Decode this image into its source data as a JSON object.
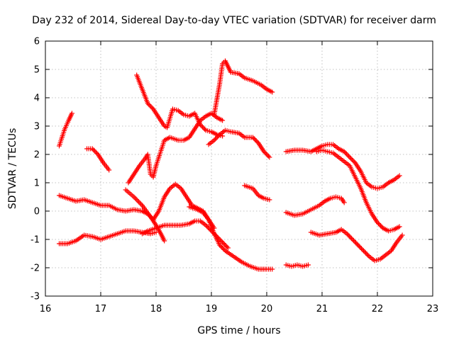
{
  "chart_data": {
    "type": "scatter",
    "title": "Day 232 of 2014, Sidereal Day-to-day VTEC variation (SDTVAR) for receiver darm",
    "xlabel": "GPS time / hours",
    "ylabel": "SDTVAR / TECUs",
    "xlim": [
      16,
      23
    ],
    "ylim": [
      -3,
      6
    ],
    "xticks": [
      "16",
      "17",
      "18",
      "19",
      "20",
      "21",
      "22",
      "23"
    ],
    "yticks": [
      "-3",
      "-2",
      "-1",
      "0",
      "1",
      "2",
      "3",
      "4",
      "5",
      "6"
    ],
    "grid": true,
    "marker": "+",
    "color": "#ff0000",
    "series": [
      {
        "name": "s1",
        "points": [
          [
            16.25,
            2.3
          ],
          [
            16.3,
            2.6
          ],
          [
            16.35,
            2.9
          ],
          [
            16.42,
            3.2
          ],
          [
            16.48,
            3.45
          ]
        ]
      },
      {
        "name": "s2",
        "points": [
          [
            16.75,
            2.2
          ],
          [
            16.85,
            2.2
          ],
          [
            16.95,
            2.0
          ],
          [
            17.05,
            1.7
          ],
          [
            17.15,
            1.45
          ]
        ]
      },
      {
        "name": "s3",
        "points": [
          [
            16.25,
            0.55
          ],
          [
            16.4,
            0.45
          ],
          [
            16.55,
            0.35
          ],
          [
            16.7,
            0.4
          ],
          [
            16.85,
            0.3
          ],
          [
            17.0,
            0.2
          ],
          [
            17.15,
            0.2
          ],
          [
            17.3,
            0.05
          ],
          [
            17.45,
            0.0
          ],
          [
            17.6,
            0.05
          ],
          [
            17.75,
            0.0
          ],
          [
            17.85,
            -0.1
          ],
          [
            17.95,
            -0.3
          ]
        ]
      },
      {
        "name": "s4",
        "points": [
          [
            16.25,
            -1.15
          ],
          [
            16.4,
            -1.15
          ],
          [
            16.55,
            -1.05
          ],
          [
            16.7,
            -0.85
          ],
          [
            16.85,
            -0.9
          ],
          [
            17.0,
            -1.0
          ],
          [
            17.15,
            -0.9
          ],
          [
            17.3,
            -0.8
          ],
          [
            17.45,
            -0.7
          ],
          [
            17.6,
            -0.7
          ],
          [
            17.75,
            -0.75
          ],
          [
            17.9,
            -0.8
          ],
          [
            18.0,
            -0.75
          ]
        ]
      },
      {
        "name": "s5",
        "points": [
          [
            17.65,
            4.8
          ],
          [
            17.75,
            4.3
          ],
          [
            17.85,
            3.8
          ],
          [
            17.95,
            3.6
          ],
          [
            18.05,
            3.3
          ],
          [
            18.15,
            3.0
          ],
          [
            18.2,
            2.95
          ],
          [
            18.3,
            3.6
          ],
          [
            18.4,
            3.55
          ],
          [
            18.5,
            3.4
          ],
          [
            18.6,
            3.35
          ],
          [
            18.7,
            3.45
          ],
          [
            18.8,
            3.05
          ],
          [
            18.9,
            2.85
          ],
          [
            19.0,
            2.8
          ],
          [
            19.1,
            2.7
          ],
          [
            19.2,
            2.65
          ]
        ]
      },
      {
        "name": "s6",
        "points": [
          [
            17.5,
            1.0
          ],
          [
            17.6,
            1.3
          ],
          [
            17.7,
            1.6
          ],
          [
            17.8,
            1.85
          ],
          [
            17.85,
            2.0
          ],
          [
            17.9,
            1.3
          ],
          [
            17.95,
            1.2
          ],
          [
            18.0,
            1.6
          ],
          [
            18.05,
            1.9
          ],
          [
            18.1,
            2.2
          ],
          [
            18.15,
            2.5
          ],
          [
            18.25,
            2.6
          ],
          [
            18.4,
            2.5
          ],
          [
            18.5,
            2.5
          ],
          [
            18.6,
            2.6
          ],
          [
            18.7,
            2.9
          ],
          [
            18.8,
            3.2
          ],
          [
            18.9,
            3.35
          ],
          [
            19.0,
            3.45
          ],
          [
            19.1,
            3.3
          ],
          [
            19.2,
            3.2
          ]
        ]
      },
      {
        "name": "s7",
        "points": [
          [
            17.45,
            0.75
          ],
          [
            17.6,
            0.5
          ],
          [
            17.75,
            0.2
          ],
          [
            17.9,
            -0.2
          ],
          [
            18.0,
            -0.5
          ],
          [
            18.1,
            -0.85
          ],
          [
            18.15,
            -1.05
          ]
        ]
      },
      {
        "name": "s8",
        "points": [
          [
            17.95,
            -0.3
          ],
          [
            18.05,
            0.0
          ],
          [
            18.15,
            0.5
          ],
          [
            18.25,
            0.8
          ],
          [
            18.35,
            0.95
          ],
          [
            18.45,
            0.8
          ],
          [
            18.55,
            0.5
          ],
          [
            18.65,
            0.2
          ],
          [
            18.75,
            0.1
          ],
          [
            18.85,
            0.0
          ],
          [
            18.95,
            -0.3
          ],
          [
            19.05,
            -0.8
          ],
          [
            19.15,
            -1.2
          ],
          [
            19.25,
            -1.4
          ],
          [
            19.4,
            -1.6
          ],
          [
            19.55,
            -1.8
          ],
          [
            19.7,
            -1.95
          ],
          [
            19.85,
            -2.05
          ],
          [
            20.0,
            -2.05
          ],
          [
            20.1,
            -2.05
          ]
        ]
      },
      {
        "name": "s9",
        "points": [
          [
            17.75,
            -0.8
          ],
          [
            17.85,
            -0.7
          ],
          [
            18.0,
            -0.6
          ],
          [
            18.15,
            -0.5
          ],
          [
            18.3,
            -0.5
          ],
          [
            18.45,
            -0.5
          ],
          [
            18.6,
            -0.45
          ],
          [
            18.7,
            -0.35
          ],
          [
            18.8,
            -0.35
          ],
          [
            18.9,
            -0.5
          ],
          [
            19.0,
            -0.7
          ],
          [
            19.1,
            -0.9
          ],
          [
            19.2,
            -1.1
          ],
          [
            19.3,
            -1.3
          ]
        ]
      },
      {
        "name": "s10",
        "points": [
          [
            18.6,
            0.15
          ],
          [
            18.75,
            0.05
          ],
          [
            18.85,
            -0.05
          ],
          [
            18.95,
            -0.3
          ],
          [
            19.05,
            -0.6
          ]
        ]
      },
      {
        "name": "s11",
        "points": [
          [
            18.95,
            2.35
          ],
          [
            19.05,
            2.5
          ],
          [
            19.15,
            2.7
          ],
          [
            19.25,
            2.85
          ],
          [
            19.35,
            2.8
          ],
          [
            19.5,
            2.75
          ],
          [
            19.6,
            2.6
          ],
          [
            19.75,
            2.6
          ],
          [
            19.85,
            2.4
          ],
          [
            19.95,
            2.1
          ],
          [
            20.05,
            1.9
          ]
        ]
      },
      {
        "name": "s12",
        "points": [
          [
            19.05,
            3.4
          ],
          [
            19.15,
            4.5
          ],
          [
            19.2,
            5.2
          ],
          [
            19.25,
            5.3
          ],
          [
            19.3,
            5.1
          ],
          [
            19.35,
            4.9
          ],
          [
            19.5,
            4.85
          ],
          [
            19.6,
            4.7
          ],
          [
            19.75,
            4.6
          ],
          [
            19.9,
            4.45
          ],
          [
            20.0,
            4.3
          ],
          [
            20.1,
            4.2
          ]
        ]
      },
      {
        "name": "s13",
        "points": [
          [
            19.6,
            0.9
          ],
          [
            19.75,
            0.8
          ],
          [
            19.85,
            0.55
          ],
          [
            19.95,
            0.45
          ],
          [
            20.05,
            0.4
          ]
        ]
      },
      {
        "name": "s14",
        "points": [
          [
            20.35,
            2.1
          ],
          [
            20.5,
            2.15
          ],
          [
            20.65,
            2.15
          ],
          [
            20.8,
            2.1
          ],
          [
            20.9,
            2.2
          ],
          [
            21.0,
            2.3
          ],
          [
            21.1,
            2.35
          ],
          [
            21.2,
            2.35
          ],
          [
            21.3,
            2.2
          ],
          [
            21.4,
            2.1
          ],
          [
            21.5,
            1.9
          ],
          [
            21.6,
            1.7
          ],
          [
            21.7,
            1.4
          ],
          [
            21.8,
            1.0
          ],
          [
            21.9,
            0.85
          ],
          [
            22.0,
            0.8
          ],
          [
            22.1,
            0.85
          ],
          [
            22.2,
            1.0
          ],
          [
            22.3,
            1.1
          ],
          [
            22.4,
            1.25
          ]
        ]
      },
      {
        "name": "s15",
        "points": [
          [
            20.9,
            2.1
          ],
          [
            21.0,
            2.15
          ],
          [
            21.1,
            2.1
          ],
          [
            21.2,
            2.05
          ],
          [
            21.3,
            1.9
          ],
          [
            21.4,
            1.75
          ],
          [
            21.5,
            1.6
          ],
          [
            21.6,
            1.2
          ],
          [
            21.7,
            0.8
          ],
          [
            21.8,
            0.3
          ],
          [
            21.9,
            -0.1
          ],
          [
            22.0,
            -0.4
          ],
          [
            22.1,
            -0.6
          ],
          [
            22.2,
            -0.7
          ],
          [
            22.3,
            -0.65
          ],
          [
            22.4,
            -0.55
          ]
        ]
      },
      {
        "name": "s16",
        "points": [
          [
            20.35,
            -0.05
          ],
          [
            20.5,
            -0.15
          ],
          [
            20.65,
            -0.1
          ],
          [
            20.8,
            0.05
          ],
          [
            20.95,
            0.2
          ],
          [
            21.05,
            0.35
          ],
          [
            21.15,
            0.45
          ],
          [
            21.25,
            0.5
          ],
          [
            21.35,
            0.45
          ],
          [
            21.4,
            0.3
          ]
        ]
      },
      {
        "name": "s17",
        "points": [
          [
            20.8,
            -0.75
          ],
          [
            20.95,
            -0.85
          ],
          [
            21.1,
            -0.8
          ],
          [
            21.25,
            -0.75
          ],
          [
            21.35,
            -0.65
          ],
          [
            21.45,
            -0.8
          ],
          [
            21.55,
            -1.0
          ],
          [
            21.65,
            -1.2
          ],
          [
            21.75,
            -1.4
          ],
          [
            21.85,
            -1.6
          ],
          [
            21.95,
            -1.75
          ],
          [
            22.05,
            -1.7
          ],
          [
            22.15,
            -1.55
          ],
          [
            22.25,
            -1.4
          ],
          [
            22.35,
            -1.1
          ],
          [
            22.45,
            -0.85
          ]
        ]
      },
      {
        "name": "s18",
        "points": [
          [
            20.35,
            -1.9
          ],
          [
            20.45,
            -1.95
          ],
          [
            20.55,
            -1.9
          ],
          [
            20.65,
            -1.95
          ],
          [
            20.75,
            -1.9
          ]
        ]
      }
    ]
  }
}
